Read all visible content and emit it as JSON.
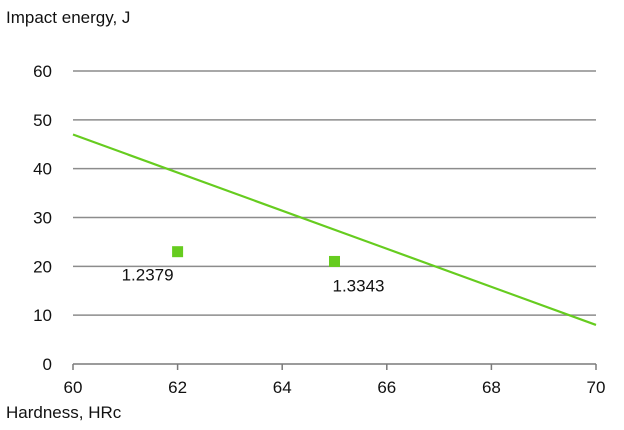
{
  "chart_data": {
    "type": "scatter",
    "title": "",
    "xlabel": "Hardness, HRc",
    "ylabel": "Impact energy, J",
    "xlim": [
      60,
      70
    ],
    "ylim": [
      0,
      60
    ],
    "x_ticks": [
      "60",
      "62",
      "64",
      "66",
      "68",
      "70"
    ],
    "y_ticks": [
      "0",
      "10",
      "20",
      "30",
      "40",
      "50",
      "60"
    ],
    "grid": "horizontal",
    "legend": "none",
    "series": [
      {
        "type": "scatter",
        "color": "#66cc1f",
        "points": [
          {
            "x": 62,
            "y": 23,
            "label": "1.2379"
          },
          {
            "x": 65,
            "y": 21,
            "label": "1.3343"
          }
        ]
      },
      {
        "type": "line",
        "color": "#66cc1f",
        "points": [
          {
            "x": 60,
            "y": 47
          },
          {
            "x": 70,
            "y": 8
          }
        ]
      }
    ],
    "colors": {
      "grid": "#8c8c8c",
      "axis": "#7a7a7a",
      "text": "#111111"
    }
  }
}
